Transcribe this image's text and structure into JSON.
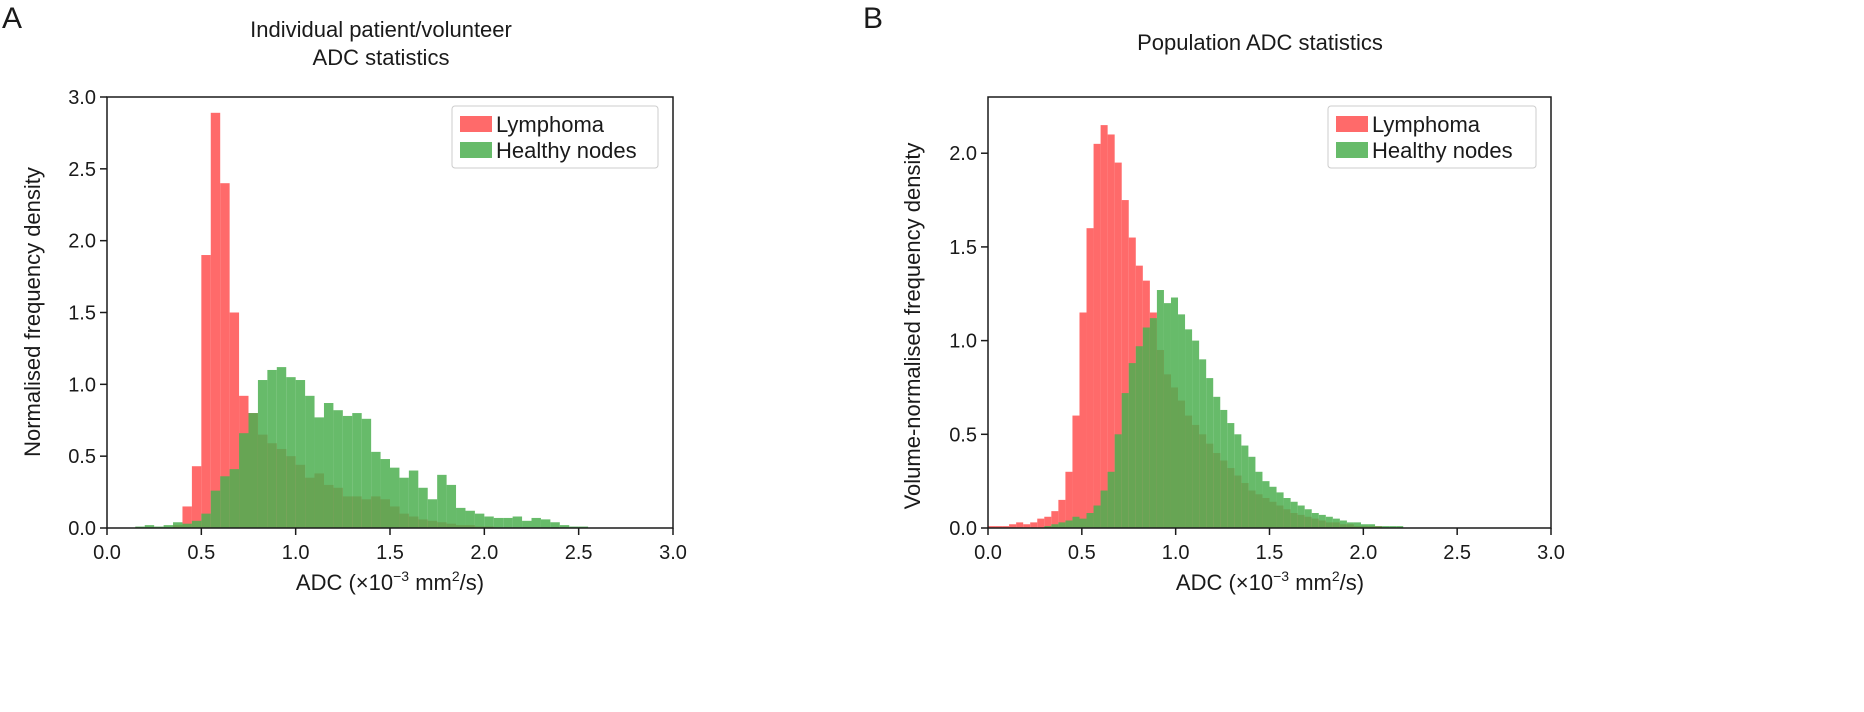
{
  "chart_data": [
    {
      "type": "bar",
      "panel_label": "A",
      "title": [
        "Individual patient/volunteer",
        "ADC statistics"
      ],
      "xlabel": "ADC (×10⁻³ mm²/s)",
      "ylabel": "Normalised frequency density",
      "xlim": [
        0.0,
        3.0
      ],
      "ylim": [
        0.0,
        3.0
      ],
      "xticks": [
        "0.0",
        "0.5",
        "1.0",
        "1.5",
        "2.0",
        "2.5",
        "3.0"
      ],
      "yticks": [
        "0.0",
        "0.5",
        "1.0",
        "1.5",
        "2.0",
        "2.5",
        "3.0"
      ],
      "grid": false,
      "legend_position": "top-right",
      "bin_start": 0.1,
      "bin_width": 0.05,
      "series": [
        {
          "name": "Lymphoma",
          "color": "#ff5050",
          "values": [
            0,
            0,
            0,
            0,
            0,
            0.02,
            0.15,
            0.43,
            1.9,
            2.89,
            2.4,
            1.5,
            0.92,
            0.8,
            0.65,
            0.59,
            0.55,
            0.5,
            0.44,
            0.35,
            0.38,
            0.3,
            0.28,
            0.22,
            0.22,
            0.2,
            0.22,
            0.2,
            0.15,
            0.1,
            0.08,
            0.06,
            0.05,
            0.04,
            0.03,
            0.02,
            0.02,
            0.01,
            0.01,
            0,
            0
          ]
        },
        {
          "name": "Healthy nodes",
          "color": "#4caf50",
          "values": [
            0,
            0.01,
            0.02,
            0.01,
            0.02,
            0.04,
            0.03,
            0.05,
            0.1,
            0.26,
            0.36,
            0.41,
            0.66,
            0.8,
            1.03,
            1.1,
            1.12,
            1.05,
            1.03,
            0.92,
            0.77,
            0.87,
            0.82,
            0.78,
            0.8,
            0.76,
            0.53,
            0.48,
            0.42,
            0.35,
            0.4,
            0.28,
            0.2,
            0.37,
            0.3,
            0.14,
            0.12,
            0.1,
            0.08,
            0.07,
            0.07,
            0.08,
            0.05,
            0.07,
            0.06,
            0.04,
            0.02,
            0.01,
            0.01,
            0,
            0
          ]
        }
      ]
    },
    {
      "type": "bar",
      "panel_label": "B",
      "title": [
        "Population ADC statistics"
      ],
      "xlabel": "ADC (×10⁻³ mm²/s)",
      "ylabel": "Volume-normalised frequency density",
      "xlim": [
        0.0,
        3.0
      ],
      "ylim": [
        0.0,
        2.3
      ],
      "xticks": [
        "0.0",
        "0.5",
        "1.0",
        "1.5",
        "2.0",
        "2.5",
        "3.0"
      ],
      "yticks": [
        "0.0",
        "0.5",
        "1.0",
        "1.5",
        "2.0"
      ],
      "ytick_values": [
        0.0,
        0.5,
        1.0,
        1.5,
        2.0
      ],
      "grid": false,
      "legend_position": "top-right",
      "bin_start": 0.0,
      "bin_width": 0.0375,
      "series": [
        {
          "name": "Lymphoma",
          "color": "#ff5050",
          "values": [
            0.01,
            0.01,
            0.01,
            0.02,
            0.03,
            0.02,
            0.03,
            0.05,
            0.06,
            0.09,
            0.15,
            0.3,
            0.6,
            1.15,
            1.6,
            2.05,
            2.15,
            2.1,
            1.95,
            1.75,
            1.55,
            1.4,
            1.32,
            1.15,
            0.95,
            0.82,
            0.75,
            0.68,
            0.6,
            0.55,
            0.5,
            0.45,
            0.4,
            0.36,
            0.32,
            0.28,
            0.24,
            0.2,
            0.18,
            0.16,
            0.14,
            0.12,
            0.1,
            0.08,
            0.07,
            0.06,
            0.05,
            0.04,
            0.03,
            0.03,
            0.02,
            0.02,
            0.01,
            0.01,
            0.01,
            0.01,
            0,
            0,
            0,
            0,
            0,
            0,
            0,
            0,
            0,
            0,
            0,
            0,
            0,
            0,
            0,
            0,
            0,
            0,
            0,
            0,
            0,
            0,
            0,
            0
          ]
        },
        {
          "name": "Healthy nodes",
          "color": "#4caf50",
          "values": [
            0,
            0,
            0,
            0,
            0,
            0,
            0,
            0,
            0.01,
            0.02,
            0.03,
            0.04,
            0.06,
            0.05,
            0.08,
            0.12,
            0.2,
            0.3,
            0.5,
            0.72,
            0.88,
            0.97,
            1.07,
            1.12,
            1.27,
            1.2,
            1.23,
            1.14,
            1.06,
            1.0,
            0.9,
            0.8,
            0.7,
            0.63,
            0.56,
            0.5,
            0.44,
            0.38,
            0.3,
            0.25,
            0.22,
            0.19,
            0.16,
            0.14,
            0.12,
            0.1,
            0.08,
            0.07,
            0.06,
            0.05,
            0.04,
            0.03,
            0.03,
            0.02,
            0.02,
            0.01,
            0.01,
            0.01,
            0.01,
            0,
            0,
            0,
            0,
            0,
            0,
            0,
            0,
            0,
            0,
            0,
            0,
            0,
            0,
            0,
            0,
            0,
            0,
            0,
            0,
            0
          ]
        }
      ]
    }
  ]
}
